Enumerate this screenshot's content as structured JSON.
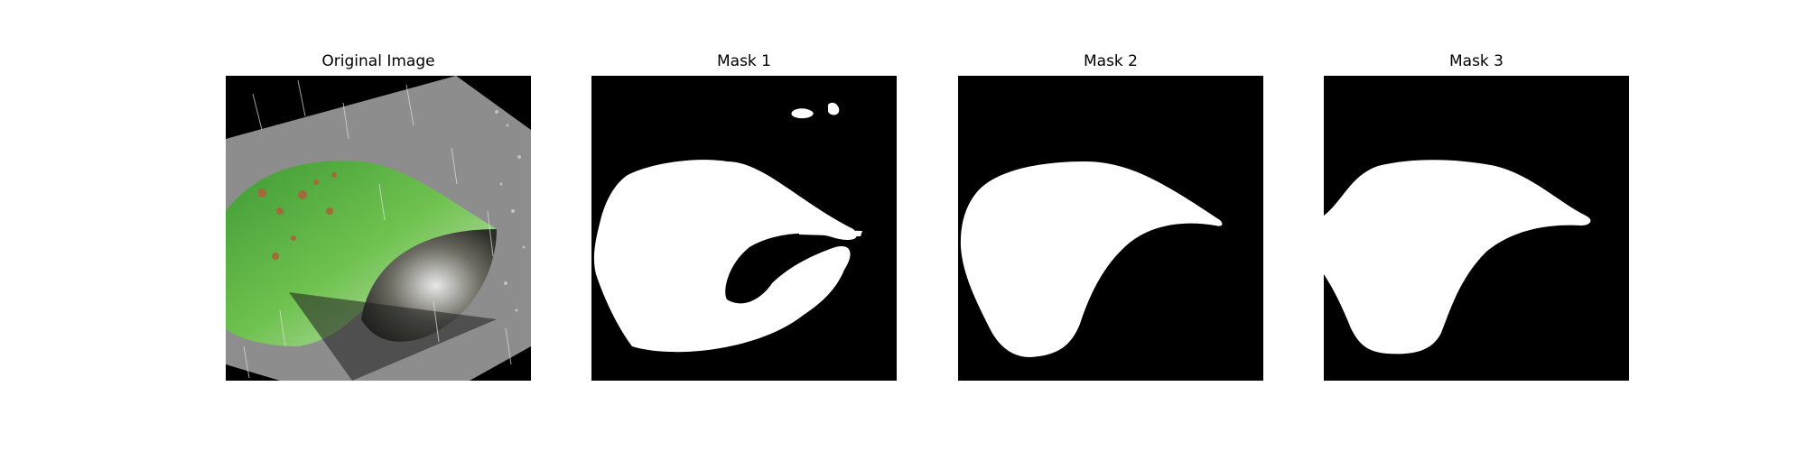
{
  "figure": {
    "panels": [
      {
        "title": "Original Image",
        "icon": "leaf-photo"
      },
      {
        "title": "Mask 1",
        "icon": "segmentation-mask"
      },
      {
        "title": "Mask 2",
        "icon": "segmentation-mask"
      },
      {
        "title": "Mask 3",
        "icon": "segmentation-mask"
      }
    ]
  },
  "colors": {
    "background": "#000000",
    "mask": "#ffffff",
    "leaf_green": "#4aa83a",
    "card_gray": "#8a8a8a"
  }
}
